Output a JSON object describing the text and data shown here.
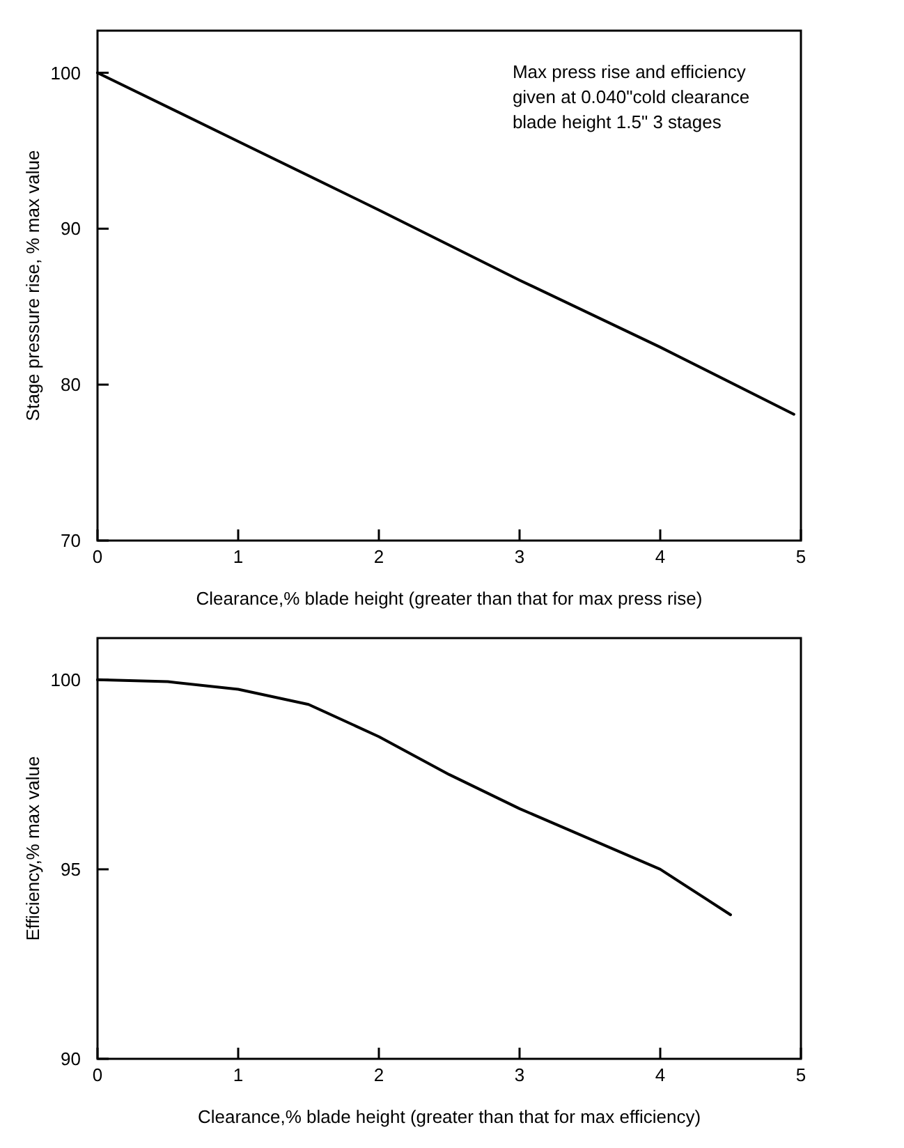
{
  "chart_data": [
    {
      "type": "line",
      "xlabel": "Clearance,% blade height (greater than that for max press rise)",
      "ylabel": "Stage pressure rise, % max value",
      "x": [
        0,
        1,
        2,
        3,
        4,
        4.95
      ],
      "values": [
        100,
        95.6,
        91.2,
        86.7,
        82.4,
        78.1
      ],
      "color": "#000000",
      "xlim": [
        0,
        5
      ],
      "ylim": [
        70,
        102.7
      ],
      "xticks": [
        0,
        1,
        2,
        3,
        4,
        5
      ],
      "yticks": [
        70,
        80,
        90,
        100
      ],
      "grid": false,
      "marker": "none",
      "line_style": "solid",
      "annotations": [
        "Max press rise and efficiency\ngiven at 0.040\"cold clearance\nblade height 1.5\" 3 stages"
      ]
    },
    {
      "type": "line",
      "xlabel": "Clearance,% blade height (greater than that for max efficiency)",
      "ylabel": "Efficiency,% max value",
      "x": [
        0,
        0.5,
        1,
        1.5,
        2,
        2.5,
        3,
        3.5,
        4,
        4.5
      ],
      "values": [
        100,
        99.95,
        99.75,
        99.35,
        98.5,
        97.5,
        96.6,
        95.8,
        95,
        93.8
      ],
      "color": "#000000",
      "xlim": [
        0,
        5
      ],
      "ylim": [
        90,
        101.1
      ],
      "xticks": [
        0,
        1,
        2,
        3,
        4,
        5
      ],
      "yticks": [
        90,
        95,
        100
      ],
      "grid": false,
      "marker": "none",
      "line_style": "solid"
    }
  ]
}
